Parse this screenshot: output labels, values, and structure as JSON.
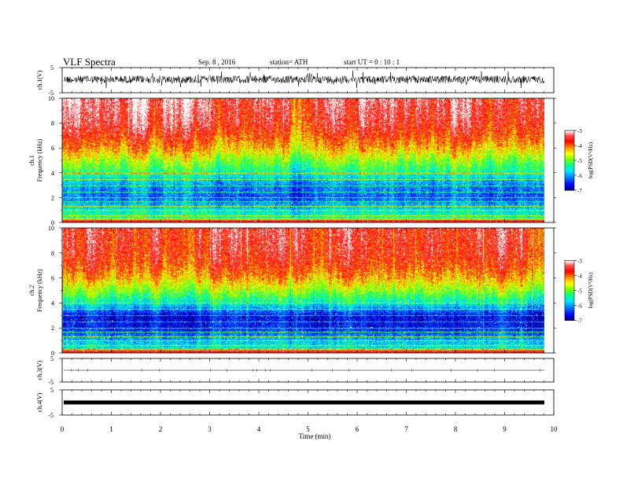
{
  "header": {
    "title": "VLF  Spectra",
    "date": "Sep. 8  , 2016",
    "station": "station= ATH",
    "start": "start  UT  =    0  : 10 : 1"
  },
  "colors": {
    "background": "#ffffff",
    "axis": "#000000",
    "colormap": [
      "#000080",
      "#0000ff",
      "#0080ff",
      "#00ffff",
      "#00ff80",
      "#80ff00",
      "#ffff00",
      "#ff8000",
      "#ff0000",
      "#ff4040",
      "#ffffff"
    ]
  },
  "chart_data": [
    {
      "type": "line",
      "panel": "ch1-waveform",
      "ylabel": "ch.1(V)",
      "ylim": [
        -5,
        5
      ],
      "y_ticks": [
        "5",
        "-5"
      ],
      "xlim": [
        0,
        10
      ],
      "description_values": {
        "baseline": 0.3,
        "noise_amplitude": 1.5
      }
    },
    {
      "type": "heatmap",
      "panel": "ch1-spectrogram",
      "ylabel_channel": "ch.1",
      "ylabel": "Frequency  (kHz)",
      "ylim": [
        0,
        10
      ],
      "y_ticks": [
        "0",
        "2",
        "4",
        "6",
        "8",
        "10"
      ],
      "xlim": [
        0,
        9.8
      ],
      "colorbar": {
        "label": "log(PSD(V²/Hz)",
        "range": [
          -7,
          -3
        ],
        "ticks": [
          "-3",
          "-4",
          "-5",
          "-6",
          "-7"
        ]
      },
      "freq_profile_khz": [
        0,
        1,
        2,
        3,
        4,
        5,
        6,
        7,
        8,
        10
      ],
      "log_psd_profile": [
        -5.2,
        -5.6,
        -6.3,
        -6.1,
        -5.4,
        -4.9,
        -4.3,
        -3.9,
        -3.6,
        -3.4
      ]
    },
    {
      "type": "heatmap",
      "panel": "ch2-spectrogram",
      "ylabel_channel": "ch.2",
      "ylabel": "Frequency  (kHz)",
      "ylim": [
        0,
        10
      ],
      "y_ticks": [
        "0",
        "2",
        "4",
        "6",
        "8",
        "10"
      ],
      "xlim": [
        0,
        9.8
      ],
      "colorbar": {
        "label": "log(PSD(V²/Hz)",
        "range": [
          -7,
          -3
        ],
        "ticks": [
          "-3",
          "-4",
          "-5",
          "-6",
          "-7"
        ]
      },
      "freq_profile_khz": [
        0,
        1,
        2,
        3,
        4,
        5,
        6,
        7,
        8,
        10
      ],
      "log_psd_profile": [
        -5.3,
        -5.8,
        -6.5,
        -6.6,
        -5.5,
        -4.8,
        -4.2,
        -3.8,
        -3.6,
        -3.5
      ]
    },
    {
      "type": "line",
      "panel": "ch3-waveform",
      "ylabel": "ch.3(V)",
      "ylim": [
        -5,
        5
      ],
      "y_ticks": [
        "5",
        "-5"
      ],
      "xlim": [
        0,
        10
      ],
      "description_values": {
        "baseline": 0,
        "noise_amplitude": 0.05
      }
    },
    {
      "type": "line",
      "panel": "ch4-waveform",
      "ylabel": "ch.4(V)",
      "ylim": [
        -5,
        5
      ],
      "y_ticks": [
        "5",
        "-5"
      ],
      "xlim": [
        0,
        10
      ],
      "description_values": {
        "baseline": 0,
        "noise_amplitude": 0.3
      }
    }
  ],
  "x_axis": {
    "label": "Time  (min)",
    "range": [
      0,
      10
    ],
    "ticks": [
      "0",
      "1",
      "2",
      "3",
      "4",
      "5",
      "6",
      "7",
      "8",
      "9",
      "10"
    ]
  }
}
